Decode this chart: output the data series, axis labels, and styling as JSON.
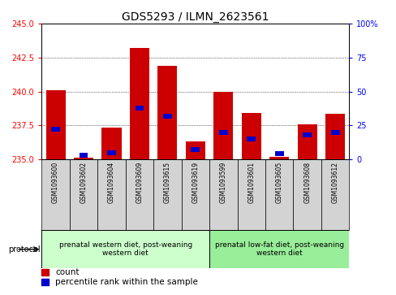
{
  "title": "GDS5293 / ILMN_2623561",
  "categories": [
    "GSM1093600",
    "GSM1093602",
    "GSM1093604",
    "GSM1093609",
    "GSM1093615",
    "GSM1093619",
    "GSM1093599",
    "GSM1093601",
    "GSM1093605",
    "GSM1093608",
    "GSM1093612"
  ],
  "bar_values": [
    240.1,
    235.15,
    237.35,
    243.2,
    241.9,
    236.3,
    240.0,
    238.4,
    235.2,
    237.6,
    238.35
  ],
  "percentile_values": [
    22,
    3,
    5,
    38,
    32,
    7,
    20,
    15,
    4,
    18,
    20
  ],
  "ymin": 235,
  "ymax": 245,
  "y_ticks": [
    235,
    237.5,
    240,
    242.5,
    245
  ],
  "y2min": 0,
  "y2max": 100,
  "y2_ticks": [
    0,
    25,
    50,
    75,
    100
  ],
  "y2_ticklabels": [
    "0",
    "25",
    "50",
    "75",
    "100%"
  ],
  "bar_color": "#cc0000",
  "dot_color": "#0000cc",
  "bar_width": 0.7,
  "group1_label": "prenatal western diet, post-weaning\nwestern diet",
  "group2_label": "prenatal low-fat diet, post-weaning\nwestern diet",
  "group1_count": 6,
  "group2_count": 5,
  "protocol_label": "protocol",
  "legend_count_label": "count",
  "legend_percentile_label": "percentile rank within the sample",
  "group1_color": "#ccffcc",
  "group2_color": "#99ee99",
  "tick_bg_color": "#d3d3d3",
  "title_fontsize": 10,
  "tick_fontsize": 7,
  "legend_fontsize": 7.5
}
